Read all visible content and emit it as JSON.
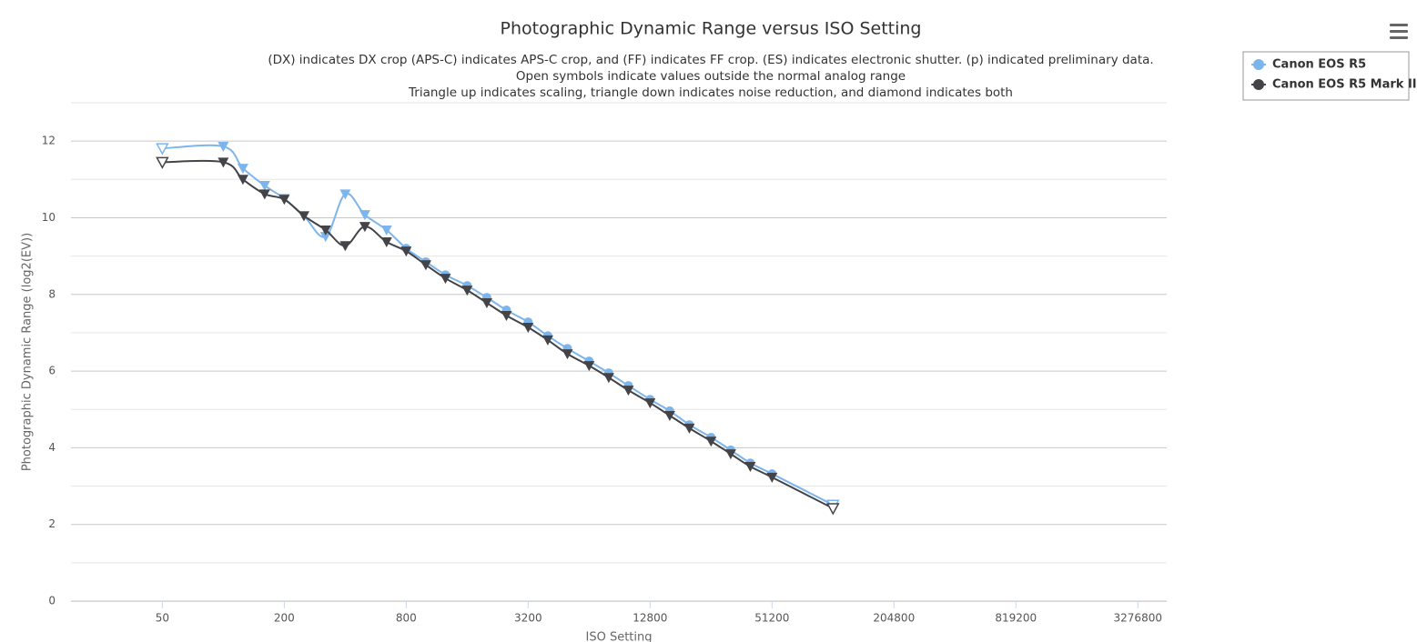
{
  "chart_data": {
    "type": "line",
    "title": "Photographic Dynamic Range versus ISO Setting",
    "subtitle": [
      "(DX) indicates DX crop (APS-C) indicates APS-C crop, and (FF) indicates FF crop. (ES) indicates electronic shutter. (p) indicated preliminary data.",
      "Open symbols indicate values outside the normal analog range",
      "Triangle up indicates scaling, triangle down indicates noise reduction, and diamond indicates both"
    ],
    "x_label": "ISO Setting",
    "y_label": "Photographic Dynamic Range (log2(EV))",
    "x_log_base": 2,
    "xlim": [
      17.7,
      4550000
    ],
    "xticks": [
      50,
      200,
      800,
      3200,
      12800,
      51200,
      204800,
      819200,
      3276800
    ],
    "ylim": [
      0,
      13
    ],
    "yticks": [
      0,
      2,
      4,
      6,
      8,
      10,
      12
    ],
    "grid": true,
    "minor_grid": true,
    "legend": "top-right",
    "x": [
      50,
      100,
      125,
      160,
      200,
      250,
      320,
      400,
      500,
      640,
      800,
      1000,
      1250,
      1600,
      2000,
      2500,
      3200,
      4000,
      5000,
      6400,
      8000,
      10000,
      12800,
      16000,
      20000,
      25600,
      32000,
      40000,
      51200,
      102400
    ],
    "series": [
      {
        "name": "Canon EOS R5",
        "color": "#7cb5ec",
        "values": [
          11.81,
          11.86,
          11.29,
          10.84,
          10.5,
          10.05,
          9.51,
          10.62,
          10.08,
          9.68,
          9.2,
          8.85,
          8.51,
          8.23,
          7.92,
          7.59,
          7.28,
          6.92,
          6.59,
          6.26,
          5.95,
          5.62,
          5.26,
          4.96,
          4.6,
          4.27,
          3.94,
          3.6,
          3.32,
          2.51
        ],
        "symbols": [
          "triangle-down-open",
          "triangle-down",
          "triangle-down",
          "triangle-down",
          "triangle-down",
          "triangle-down",
          "triangle-down",
          "triangle-down",
          "triangle-down",
          "triangle-down",
          "circle",
          "circle",
          "circle",
          "circle",
          "circle",
          "circle",
          "circle",
          "circle",
          "circle",
          "circle",
          "circle",
          "circle",
          "circle",
          "circle",
          "circle",
          "circle",
          "circle",
          "circle",
          "circle",
          "triangle-down-open"
        ]
      },
      {
        "name": "Canon EOS R5 Mark II",
        "color": "#434348",
        "values": [
          11.45,
          11.45,
          11.0,
          10.62,
          10.48,
          10.05,
          9.68,
          9.27,
          9.77,
          9.37,
          9.13,
          8.77,
          8.42,
          8.11,
          7.78,
          7.45,
          7.14,
          6.81,
          6.45,
          6.14,
          5.83,
          5.5,
          5.17,
          4.84,
          4.51,
          4.17,
          3.84,
          3.51,
          3.23,
          2.42
        ],
        "symbols": [
          "triangle-down-open",
          "triangle-down",
          "triangle-down",
          "triangle-down",
          "triangle-down",
          "triangle-down",
          "triangle-down",
          "triangle-down",
          "triangle-down",
          "triangle-down",
          "triangle-down",
          "triangle-down",
          "triangle-down",
          "triangle-down",
          "triangle-down",
          "triangle-down",
          "triangle-down",
          "triangle-down",
          "triangle-down",
          "triangle-down",
          "triangle-down",
          "triangle-down",
          "triangle-down",
          "triangle-down",
          "triangle-down",
          "triangle-down",
          "triangle-down",
          "triangle-down",
          "triangle-down",
          "triangle-down-open"
        ]
      }
    ]
  }
}
